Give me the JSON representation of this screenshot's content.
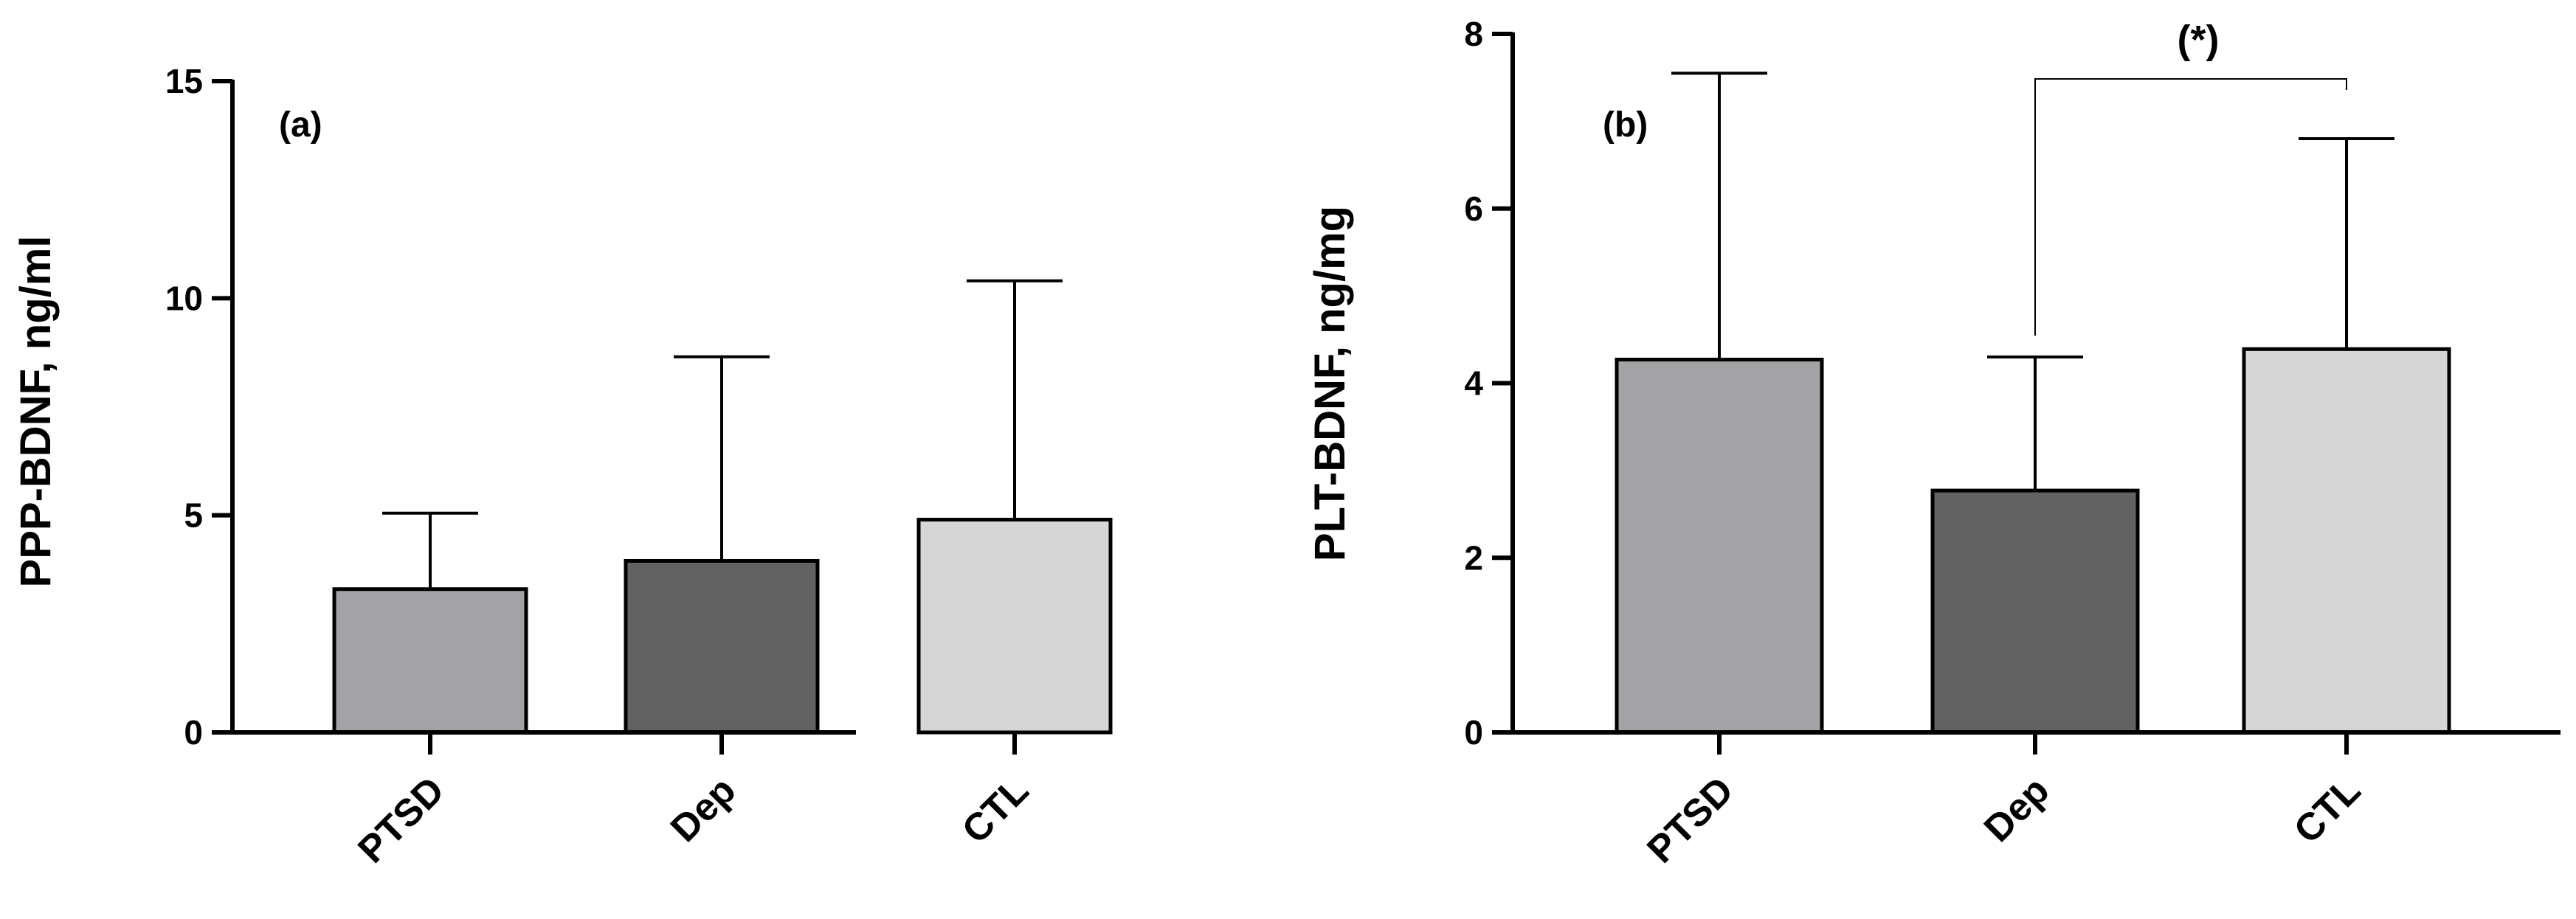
{
  "chart_data": [
    {
      "type": "bar",
      "panel_label": "(a)",
      "ylabel": "PPP-BDNF, ng/ml",
      "categories": [
        "PTSD",
        "Dep",
        "CTL"
      ],
      "values": [
        3.3,
        3.95,
        4.9
      ],
      "error_upper": [
        5.05,
        8.65,
        10.4
      ],
      "bar_colors": [
        "#a3a3a6",
        "#626262",
        "#d6d6d6"
      ],
      "ylim": [
        0,
        15
      ],
      "yticks": [
        0,
        5,
        10,
        15
      ],
      "ytick_labels": [
        "0",
        "5",
        "10",
        "15"
      ],
      "grid": false
    },
    {
      "type": "bar",
      "panel_label": "(b)",
      "ylabel": "PLT-BDNF, ng/mg",
      "categories": [
        "PTSD",
        "Dep",
        "CTL"
      ],
      "values": [
        4.27,
        2.77,
        4.39
      ],
      "error_upper": [
        7.55,
        4.3,
        6.8
      ],
      "bar_colors": [
        "#a3a3a6",
        "#626262",
        "#d6d6d6"
      ],
      "ylim": [
        0,
        8
      ],
      "yticks": [
        0,
        2,
        4,
        6,
        8
      ],
      "ytick_labels": [
        "0",
        "2",
        "4",
        "6",
        "8"
      ],
      "grid": false,
      "significance": {
        "from": "Dep",
        "to": "CTL",
        "label": "(*)"
      }
    }
  ]
}
